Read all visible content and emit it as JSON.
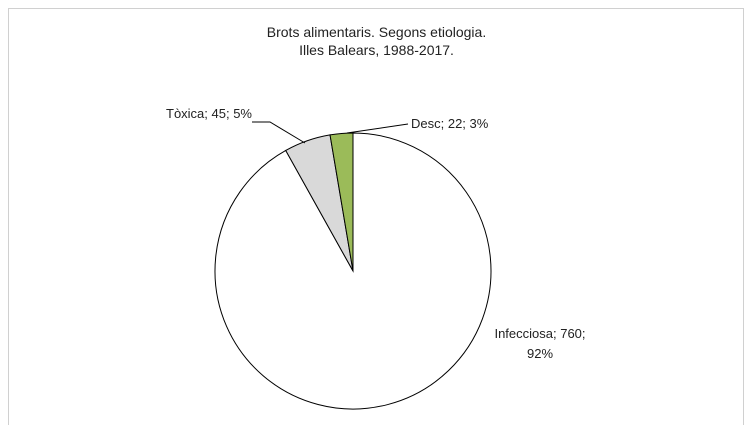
{
  "chart_data": {
    "type": "pie",
    "title": "Brots alimentaris. Segons etiologia.",
    "subtitle": "Illes Balears, 1988-2017.",
    "categories": [
      "Infecciosa",
      "Tòxica",
      "Desc"
    ],
    "values": [
      760,
      45,
      22
    ],
    "value_labels": [
      "Infecciosa; 760; 92%",
      "Tòxica; 45; 5%",
      "Desc; 22; 3%"
    ],
    "colors": [
      "#ffffff",
      "#d9d9d9",
      "#9bbb59"
    ]
  }
}
